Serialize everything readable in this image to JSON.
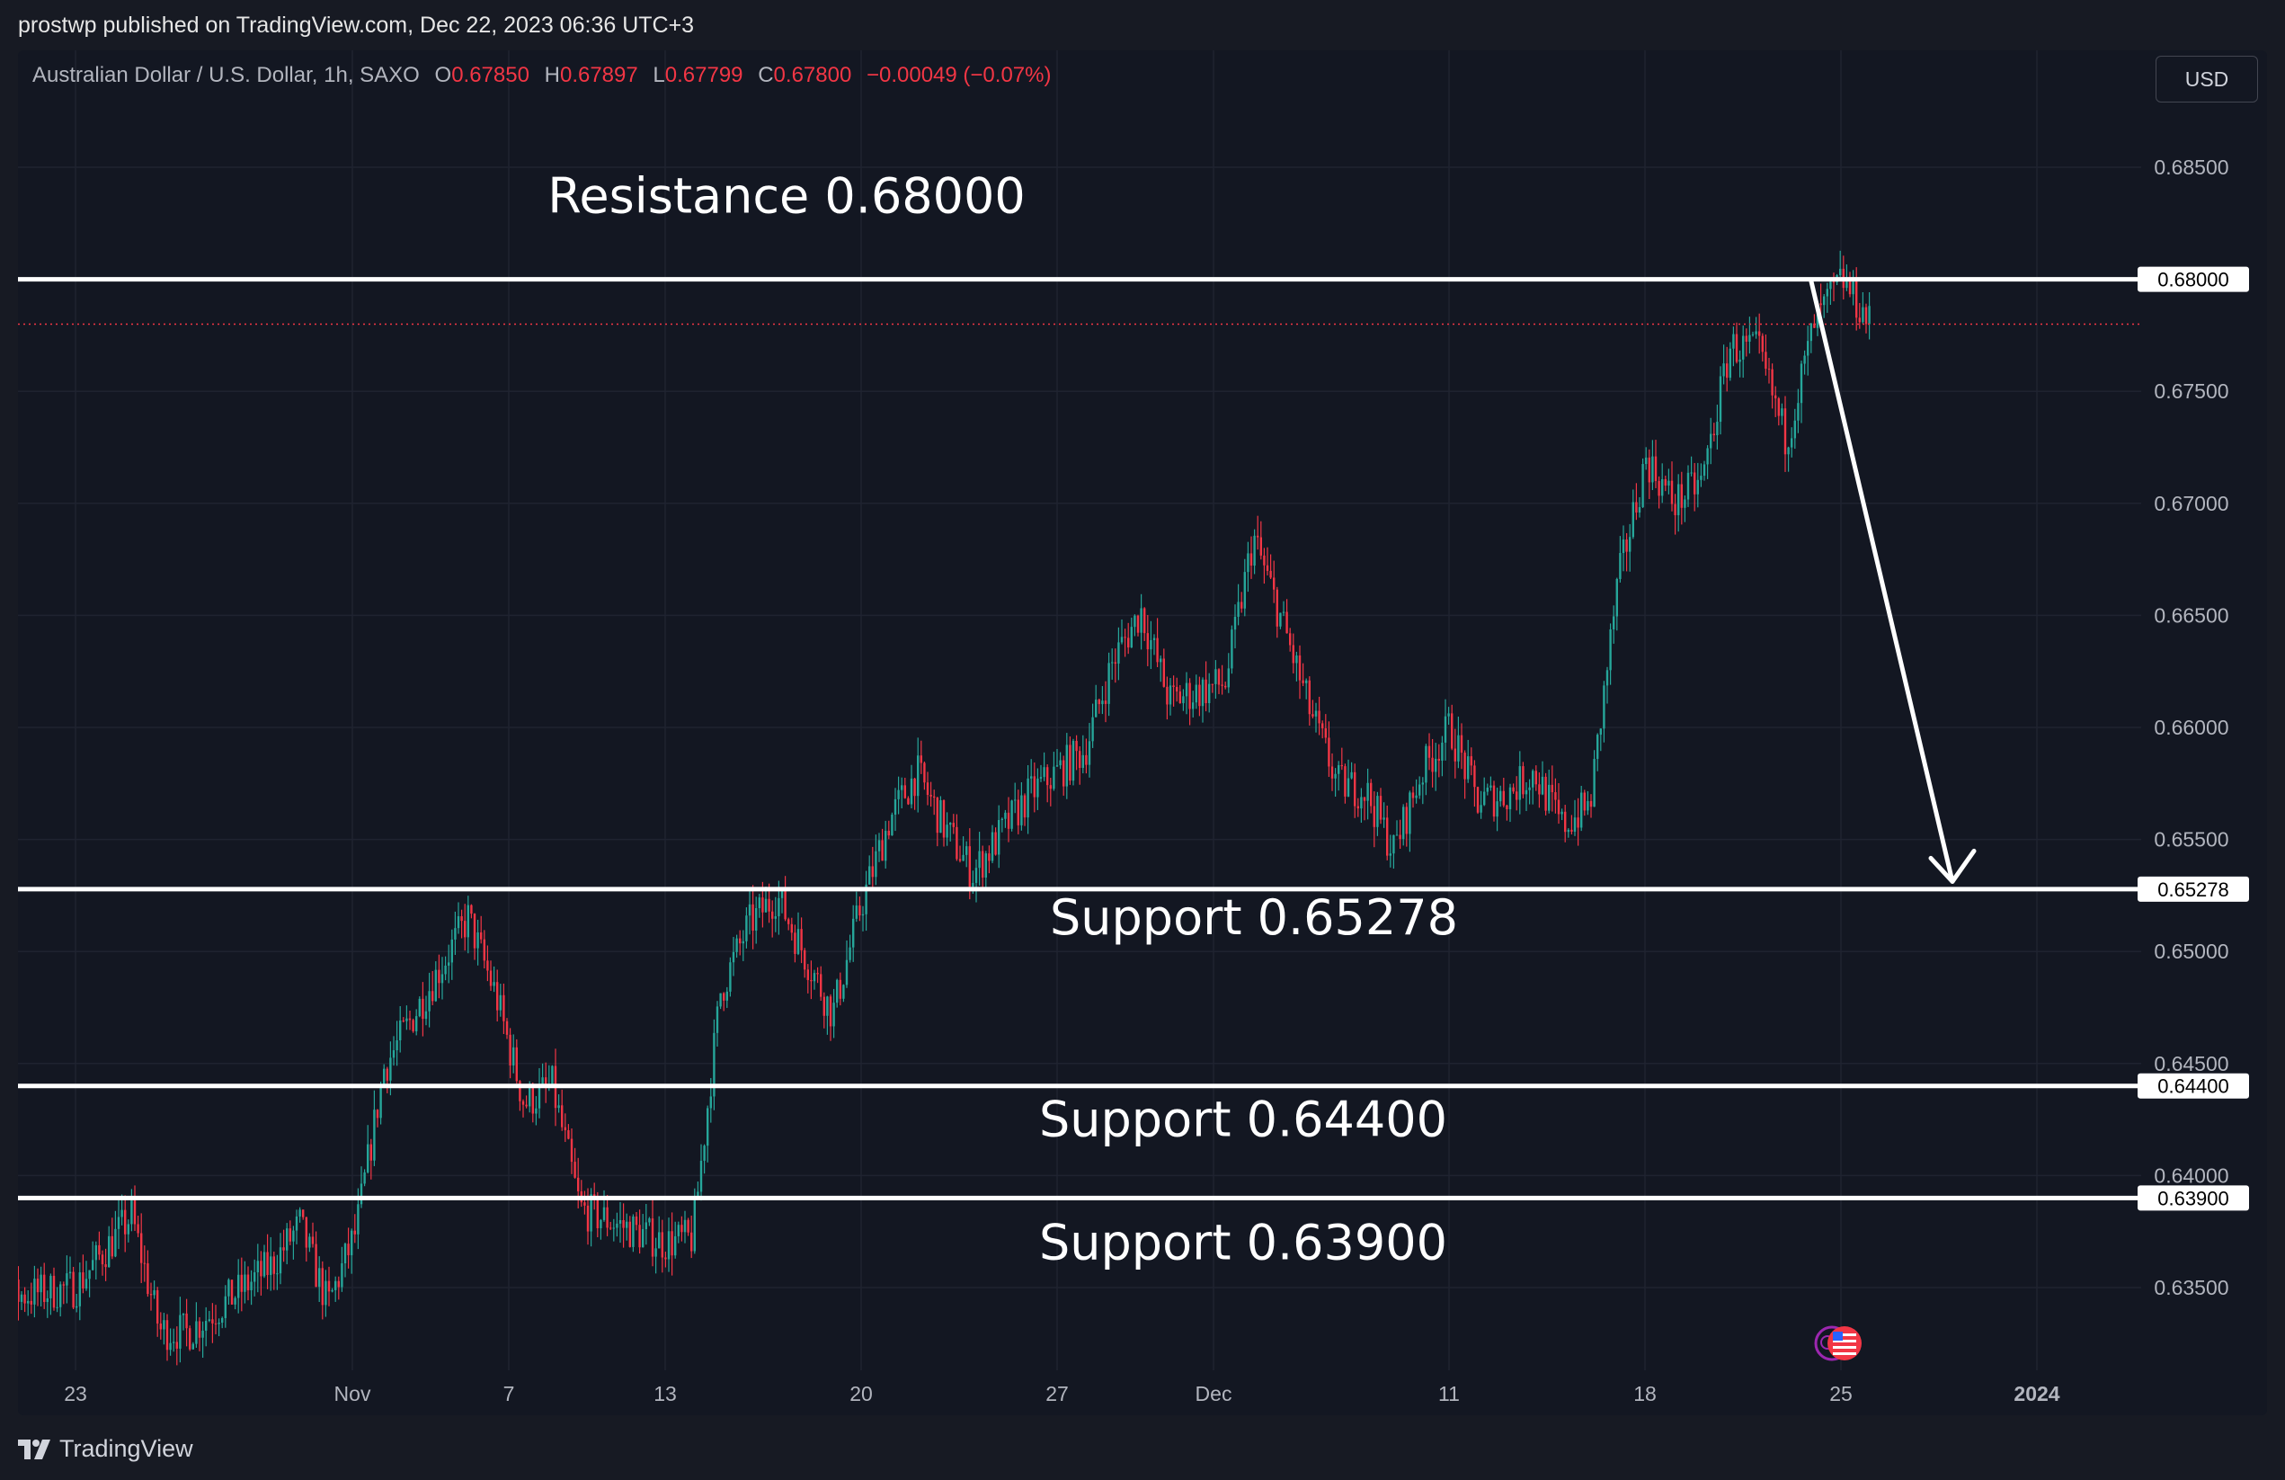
{
  "header": {
    "published_text": "prostwp published on TradingView.com, Dec 22, 2023 06:36 UTC+3"
  },
  "legend": {
    "symbol": "Australian Dollar / U.S. Dollar, 1h, SAXO",
    "open_label": "O",
    "open_value": "0.67850",
    "high_label": "H",
    "high_value": "0.67897",
    "low_label": "L",
    "low_value": "0.67799",
    "close_label": "C",
    "close_value": "0.67800",
    "change": "−0.00049 (−0.07%)"
  },
  "currency_button": "USD",
  "footer": {
    "brand": "TradingView"
  },
  "colors": {
    "up": "#26a69a",
    "down": "#f23645",
    "background": "#131722",
    "grid": "#1f2330",
    "level_line": "#ffffff",
    "axis_text": "#b2b5be"
  },
  "chart_data": {
    "type": "candlestick",
    "symbol": "AUDUSD",
    "timeframe": "1h",
    "x": [
      "Oct 23",
      "Nov",
      "7",
      "13",
      "20",
      "27",
      "Dec",
      "11",
      "18",
      "25",
      "2024"
    ],
    "x_ticks": [
      "23",
      "Nov",
      "7",
      "13",
      "20",
      "27",
      "Dec",
      "11",
      "18",
      "25",
      "2024"
    ],
    "ylim": [
      0.6318,
      0.6885
    ],
    "y_ticks": [
      "0.68500",
      "0.67500",
      "0.67000",
      "0.66500",
      "0.66000",
      "0.65500",
      "0.65000",
      "0.64500",
      "0.64000",
      "0.63500"
    ],
    "price_path": [
      {
        "date": "2023-10-19",
        "price": 0.6343
      },
      {
        "date": "2023-10-23",
        "price": 0.635
      },
      {
        "date": "2023-10-25",
        "price": 0.6382
      },
      {
        "date": "2023-10-26",
        "price": 0.6331
      },
      {
        "date": "2023-10-27",
        "price": 0.633
      },
      {
        "date": "2023-10-30",
        "price": 0.636
      },
      {
        "date": "2023-10-31",
        "price": 0.6378
      },
      {
        "date": "2023-11-01",
        "price": 0.6342
      },
      {
        "date": "2023-11-02",
        "price": 0.6375
      },
      {
        "date": "2023-11-03",
        "price": 0.6448
      },
      {
        "date": "2023-11-06",
        "price": 0.6515
      },
      {
        "date": "2023-11-07",
        "price": 0.648
      },
      {
        "date": "2023-11-08",
        "price": 0.6432
      },
      {
        "date": "2023-11-09",
        "price": 0.644
      },
      {
        "date": "2023-11-10",
        "price": 0.6385
      },
      {
        "date": "2023-11-13",
        "price": 0.637
      },
      {
        "date": "2023-11-14",
        "price": 0.6372
      },
      {
        "date": "2023-11-15",
        "price": 0.6482
      },
      {
        "date": "2023-11-16",
        "price": 0.6512
      },
      {
        "date": "2023-11-17",
        "price": 0.6525
      },
      {
        "date": "2023-11-19",
        "price": 0.6472
      },
      {
        "date": "2023-11-20",
        "price": 0.652
      },
      {
        "date": "2023-11-21",
        "price": 0.6558
      },
      {
        "date": "2023-11-22",
        "price": 0.658
      },
      {
        "date": "2023-11-23",
        "price": 0.6555
      },
      {
        "date": "2023-11-24",
        "price": 0.6535
      },
      {
        "date": "2023-11-26",
        "price": 0.657
      },
      {
        "date": "2023-11-28",
        "price": 0.659
      },
      {
        "date": "2023-11-29",
        "price": 0.663
      },
      {
        "date": "2023-11-30",
        "price": 0.6652
      },
      {
        "date": "2023-12-01",
        "price": 0.6612
      },
      {
        "date": "2023-12-03",
        "price": 0.662
      },
      {
        "date": "2023-12-04",
        "price": 0.6685
      },
      {
        "date": "2023-12-05",
        "price": 0.6648
      },
      {
        "date": "2023-12-06",
        "price": 0.6608
      },
      {
        "date": "2023-12-07",
        "price": 0.6575
      },
      {
        "date": "2023-12-08",
        "price": 0.6572
      },
      {
        "date": "2023-12-09",
        "price": 0.6545
      },
      {
        "date": "2023-12-10",
        "price": 0.658
      },
      {
        "date": "2023-12-11",
        "price": 0.66
      },
      {
        "date": "2023-12-12",
        "price": 0.6567
      },
      {
        "date": "2023-12-13",
        "price": 0.657
      },
      {
        "date": "2023-12-14",
        "price": 0.658
      },
      {
        "date": "2023-12-15",
        "price": 0.6556
      },
      {
        "date": "2023-12-16",
        "price": 0.6565
      },
      {
        "date": "2023-12-17",
        "price": 0.6665
      },
      {
        "date": "2023-12-18",
        "price": 0.672
      },
      {
        "date": "2023-12-19",
        "price": 0.67
      },
      {
        "date": "2023-12-20",
        "price": 0.671
      },
      {
        "date": "2023-12-21",
        "price": 0.677
      },
      {
        "date": "2023-12-22",
        "price": 0.6768
      },
      {
        "date": "2023-12-23",
        "price": 0.6728
      },
      {
        "date": "2023-12-24",
        "price": 0.678
      },
      {
        "date": "2023-12-25",
        "price": 0.68
      },
      {
        "date": "2023-12-26",
        "price": 0.678
      }
    ],
    "levels": [
      {
        "label": "Resistance 0.68000",
        "price_tag": "0.68000",
        "price": 0.68
      },
      {
        "label": "Support 0.65278",
        "price_tag": "0.65278",
        "price": 0.65278
      },
      {
        "label": "Support 0.64400",
        "price_tag": "0.64400",
        "price": 0.644
      },
      {
        "label": "Support 0.63900",
        "price_tag": "0.63900",
        "price": 0.639
      }
    ],
    "current_price_line": 0.678,
    "projection": {
      "from_price": 0.6799,
      "to_price": 0.6528,
      "direction": "down"
    },
    "grid": true,
    "price_axis": "right"
  }
}
